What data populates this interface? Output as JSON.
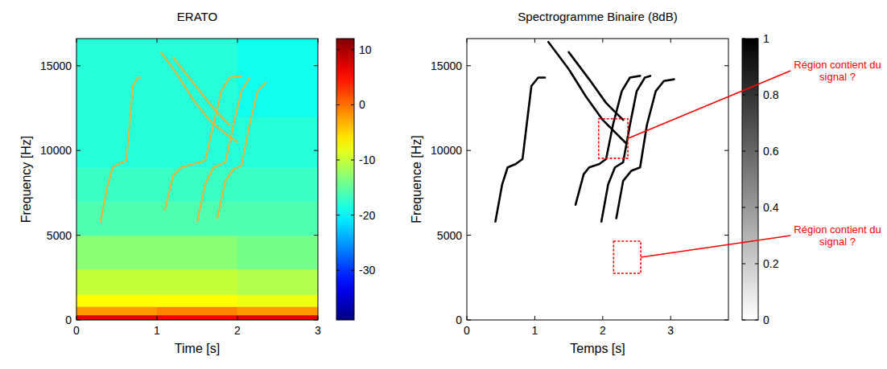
{
  "chart_data": [
    {
      "type": "heatmap",
      "title": "ERATO",
      "x_label": "Time [s]",
      "y_label": "Frequency [Hz]",
      "xlim": [
        0,
        3
      ],
      "ylim": [
        0,
        16600
      ],
      "xticks": [
        0,
        1,
        2,
        3
      ],
      "yticks": [
        0,
        5000,
        10000,
        15000
      ],
      "x_bins": [
        0,
        1,
        2,
        3
      ],
      "y_bins": [
        0,
        300,
        800,
        1500,
        3000,
        5000,
        7000,
        9000,
        12000,
        16600
      ],
      "cells": [
        [
          7,
          6,
          7
        ],
        [
          -2,
          -1,
          -2
        ],
        [
          -7,
          -7,
          -8
        ],
        [
          -10,
          -10,
          -11
        ],
        [
          -13,
          -13,
          -14
        ],
        [
          -16,
          -16,
          -16
        ],
        [
          -17,
          -17,
          -17
        ],
        [
          -18,
          -18,
          -18
        ],
        [
          -18,
          -18,
          -19
        ]
      ],
      "colorbar": {
        "range": [
          -39,
          12
        ],
        "ticks": [
          -30,
          -20,
          -10,
          0,
          10
        ]
      },
      "series": [
        {
          "color": "#f0b030",
          "x": [
            0.3,
            0.38,
            0.45,
            0.52,
            0.62,
            0.66,
            0.7,
            0.76,
            0.8
          ],
          "values": [
            5800,
            7800,
            9000,
            9200,
            9400,
            11500,
            13800,
            14300,
            14300
          ]
        },
        {
          "color": "#f0b030",
          "x": [
            1.1,
            1.2,
            1.3,
            1.45,
            1.6,
            1.7,
            1.8,
            1.9,
            2.05
          ],
          "values": [
            6500,
            8500,
            9000,
            9200,
            9400,
            11500,
            13500,
            14300,
            14400
          ]
        },
        {
          "color": "#f0b030",
          "x": [
            1.5,
            1.6,
            1.7,
            1.85,
            1.95,
            2.05,
            2.15
          ],
          "values": [
            5800,
            8000,
            9000,
            9300,
            11500,
            13500,
            14300
          ]
        },
        {
          "color": "#f0b030",
          "x": [
            1.75,
            1.85,
            1.95,
            2.05,
            2.15,
            2.25,
            2.35
          ],
          "values": [
            6000,
            8200,
            8900,
            9100,
            11500,
            13500,
            14000
          ]
        },
        {
          "color": "#f0b030",
          "x": [
            1.05,
            1.25,
            1.45,
            1.65,
            1.85,
            2.0
          ],
          "values": [
            15800,
            14500,
            13000,
            11800,
            11000,
            10500
          ]
        },
        {
          "color": "#f0b030",
          "x": [
            1.2,
            1.45,
            1.7,
            1.9
          ],
          "values": [
            15500,
            14000,
            12500,
            11500
          ]
        }
      ]
    },
    {
      "type": "line",
      "title": "Spectrogramme Binaire (8dB)",
      "x_label": "Temps [s]",
      "y_label": "Frequence [Hz]",
      "xlim": [
        0,
        3.85
      ],
      "ylim": [
        0,
        16600
      ],
      "xticks": [
        0,
        1,
        2,
        3
      ],
      "yticks": [
        0,
        5000,
        10000,
        15000
      ],
      "colorbar": {
        "range": [
          0,
          1
        ],
        "ticks": [
          0,
          0.2,
          0.4,
          0.6,
          0.8,
          1
        ]
      },
      "series": [
        {
          "color": "#000000",
          "x": [
            0.42,
            0.52,
            0.6,
            0.72,
            0.82,
            0.88,
            0.95,
            1.05,
            1.15
          ],
          "values": [
            5800,
            8000,
            9000,
            9200,
            9500,
            11500,
            13800,
            14300,
            14300
          ]
        },
        {
          "color": "#000000",
          "x": [
            1.6,
            1.72,
            1.8,
            1.95,
            2.05,
            2.15,
            2.28,
            2.4,
            2.55
          ],
          "values": [
            6800,
            8600,
            9000,
            9200,
            9500,
            11500,
            13500,
            14300,
            14400
          ]
        },
        {
          "color": "#000000",
          "x": [
            1.98,
            2.08,
            2.18,
            2.3,
            2.4,
            2.5,
            2.62,
            2.7
          ],
          "values": [
            5800,
            8000,
            9000,
            9300,
            11500,
            13500,
            14300,
            14400
          ]
        },
        {
          "color": "#000000",
          "x": [
            2.2,
            2.3,
            2.42,
            2.55,
            2.65,
            2.78,
            2.9,
            3.05
          ],
          "values": [
            6000,
            8200,
            8800,
            9000,
            11500,
            13500,
            14100,
            14200
          ]
        },
        {
          "color": "#000000",
          "x": [
            1.2,
            1.5,
            1.75,
            2.0,
            2.2,
            2.35
          ],
          "values": [
            16400,
            14800,
            13200,
            11800,
            11000,
            10400
          ]
        },
        {
          "color": "#000000",
          "x": [
            1.5,
            1.8,
            2.05,
            2.3
          ],
          "values": [
            15800,
            14200,
            12800,
            11800
          ]
        }
      ],
      "annotations": [
        {
          "text": "Région contient du signal ?",
          "x": [
            1.94,
            2.37
          ],
          "y": [
            9540,
            11870
          ]
        },
        {
          "text": "Région contient du signal ?",
          "x": [
            2.16,
            2.56
          ],
          "y": [
            2750,
            4650
          ]
        }
      ]
    }
  ]
}
